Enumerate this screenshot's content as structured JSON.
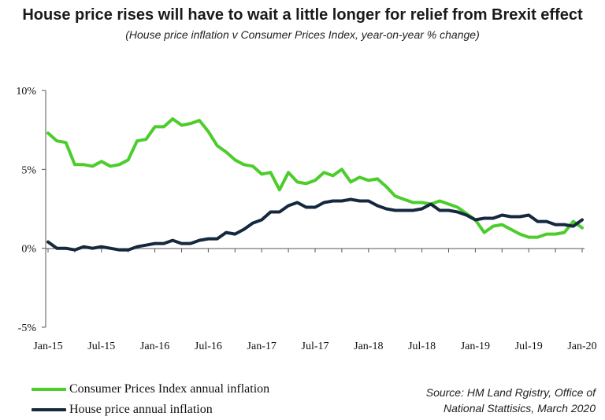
{
  "colors": {
    "cpi": "#4ccd2c",
    "house": "#14283f",
    "axis": "#555555"
  },
  "chart_data": {
    "type": "line",
    "title": "House price rises will have to wait a little longer for relief from Brexit effect",
    "subtitle": "(House price inflation v Consumer Prices Index, year-on-year % change)",
    "x": [
      "Jan-15",
      "Feb-15",
      "Mar-15",
      "Apr-15",
      "May-15",
      "Jun-15",
      "Jul-15",
      "Aug-15",
      "Sep-15",
      "Oct-15",
      "Nov-15",
      "Dec-15",
      "Jan-16",
      "Feb-16",
      "Mar-16",
      "Apr-16",
      "May-16",
      "Jun-16",
      "Jul-16",
      "Aug-16",
      "Sep-16",
      "Oct-16",
      "Nov-16",
      "Dec-16",
      "Jan-17",
      "Feb-17",
      "Mar-17",
      "Apr-17",
      "May-17",
      "Jun-17",
      "Jul-17",
      "Aug-17",
      "Sep-17",
      "Oct-17",
      "Nov-17",
      "Dec-17",
      "Jan-18",
      "Feb-18",
      "Mar-18",
      "Apr-18",
      "May-18",
      "Jun-18",
      "Jul-18",
      "Aug-18",
      "Sep-18",
      "Oct-18",
      "Nov-18",
      "Dec-18",
      "Jan-19",
      "Feb-19",
      "Mar-19",
      "Apr-19",
      "May-19",
      "Jun-19",
      "Jul-19",
      "Aug-19",
      "Sep-19",
      "Oct-19",
      "Nov-19",
      "Dec-19",
      "Jan-20"
    ],
    "x_tick_labels": [
      "Jan-15",
      "Jul-15",
      "Jan-16",
      "Jul-16",
      "Jan-17",
      "Jul-17",
      "Jan-18",
      "Jul-18",
      "Jan-19",
      "Jul-19",
      "Jan-20"
    ],
    "y_tick_labels": [
      "10%",
      "5%",
      "0%",
      "-5%"
    ],
    "y_ticks": [
      10,
      5,
      0,
      -5
    ],
    "ylim": [
      -5,
      10
    ],
    "series": [
      {
        "name": "Consumer Prices Index annual inflation",
        "color_key": "cpi",
        "values": [
          7.3,
          6.8,
          6.7,
          5.3,
          5.3,
          5.2,
          5.5,
          5.2,
          5.3,
          5.6,
          6.8,
          6.9,
          7.7,
          7.7,
          8.2,
          7.8,
          7.9,
          8.1,
          7.4,
          6.5,
          6.1,
          5.6,
          5.3,
          5.2,
          4.7,
          4.8,
          3.7,
          4.8,
          4.2,
          4.1,
          4.3,
          4.8,
          4.6,
          5.0,
          4.2,
          4.5,
          4.3,
          4.4,
          3.9,
          3.3,
          3.1,
          2.9,
          2.9,
          2.8,
          3.0,
          2.8,
          2.6,
          2.2,
          1.8,
          1.0,
          1.4,
          1.5,
          1.2,
          0.9,
          0.7,
          0.7,
          0.9,
          0.9,
          1.0,
          1.7,
          1.3
        ]
      },
      {
        "name": "House price annual inflation",
        "color_key": "house",
        "values": [
          0.4,
          0.0,
          0.0,
          -0.1,
          0.1,
          0.0,
          0.1,
          0.0,
          -0.1,
          -0.1,
          0.1,
          0.2,
          0.3,
          0.3,
          0.5,
          0.3,
          0.3,
          0.5,
          0.6,
          0.6,
          1.0,
          0.9,
          1.2,
          1.6,
          1.8,
          2.3,
          2.3,
          2.7,
          2.9,
          2.6,
          2.6,
          2.9,
          3.0,
          3.0,
          3.1,
          3.0,
          3.0,
          2.7,
          2.5,
          2.4,
          2.4,
          2.4,
          2.5,
          2.8,
          2.4,
          2.4,
          2.3,
          2.1,
          1.8,
          1.9,
          1.9,
          2.1,
          2.0,
          2.0,
          2.1,
          1.7,
          1.7,
          1.5,
          1.5,
          1.4,
          1.8
        ]
      }
    ],
    "grid": false,
    "legend_position": "bottom-left"
  },
  "legend": [
    {
      "label": "Consumer Prices Index annual inflation"
    },
    {
      "label": "House price annual inflation"
    }
  ],
  "source_line1": "Source: HM Land Rgistry, Office of",
  "source_line2": "National Stattisics, March 2020"
}
